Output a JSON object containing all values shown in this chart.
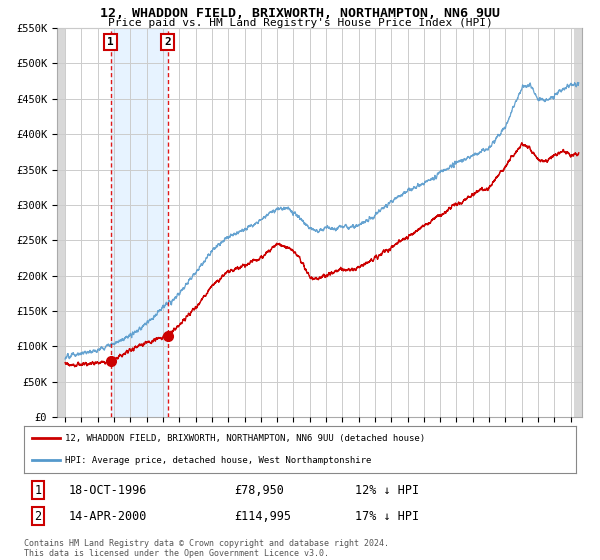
{
  "title": "12, WHADDON FIELD, BRIXWORTH, NORTHAMPTON, NN6 9UU",
  "subtitle": "Price paid vs. HM Land Registry's House Price Index (HPI)",
  "ylim": [
    0,
    550000
  ],
  "yticks": [
    0,
    50000,
    100000,
    150000,
    200000,
    250000,
    300000,
    350000,
    400000,
    450000,
    500000,
    550000
  ],
  "ytick_labels": [
    "£0",
    "£50K",
    "£100K",
    "£150K",
    "£200K",
    "£250K",
    "£300K",
    "£350K",
    "£400K",
    "£450K",
    "£500K",
    "£550K"
  ],
  "xlim_start": 1993.5,
  "xlim_end": 2025.7,
  "point1_x": 1996.79,
  "point1_y": 78950,
  "point2_x": 2000.28,
  "point2_y": 114995,
  "line_color_price": "#cc0000",
  "line_color_hpi": "#5599cc",
  "legend_label_price": "12, WHADDON FIELD, BRIXWORTH, NORTHAMPTON, NN6 9UU (detached house)",
  "legend_label_hpi": "HPI: Average price, detached house, West Northamptonshire",
  "point1_date": "18-OCT-1996",
  "point1_price": "£78,950",
  "point1_hpi": "12% ↓ HPI",
  "point2_date": "14-APR-2000",
  "point2_price": "£114,995",
  "point2_hpi": "17% ↓ HPI",
  "footer": "Contains HM Land Registry data © Crown copyright and database right 2024.\nThis data is licensed under the Open Government Licence v3.0.",
  "background_color": "#ffffff",
  "grid_color": "#cccccc"
}
